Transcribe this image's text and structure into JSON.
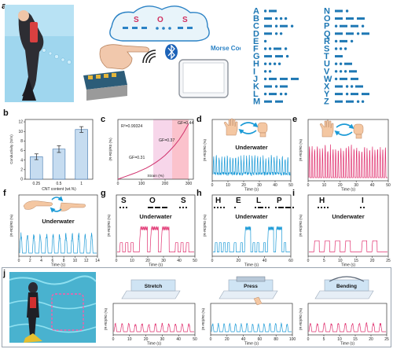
{
  "colors": {
    "blue": "#1e9bd7",
    "pink": "#e0306f",
    "morse": "#1e78b4",
    "bar": "#c6dcf0"
  },
  "panel_labels": [
    "a",
    "b",
    "c",
    "d",
    "e",
    "f",
    "g",
    "h",
    "i",
    "j"
  ],
  "panel_a": {
    "sos": [
      "S",
      "O",
      "S"
    ],
    "morse_label": "Morse Code",
    "bluetooth_icon": "bluetooth-icon",
    "wifi_icon": "wifi-signal-icon",
    "alphabet": [
      {
        "letter": "A",
        "code": ".-"
      },
      {
        "letter": "B",
        "code": "-..."
      },
      {
        "letter": "C",
        "code": "-.-."
      },
      {
        "letter": "D",
        "code": "-.."
      },
      {
        "letter": "E",
        "code": "."
      },
      {
        "letter": "F",
        "code": "..-."
      },
      {
        "letter": "G",
        "code": "--."
      },
      {
        "letter": "H",
        "code": "...."
      },
      {
        "letter": "I",
        "code": ".."
      },
      {
        "letter": "J",
        "code": ".---"
      },
      {
        "letter": "K",
        "code": "-.-"
      },
      {
        "letter": "L",
        "code": ".-.."
      },
      {
        "letter": "M",
        "code": "--"
      },
      {
        "letter": "N",
        "code": "-."
      },
      {
        "letter": "O",
        "code": "---"
      },
      {
        "letter": "P",
        "code": ".--."
      },
      {
        "letter": "Q",
        "code": "--.-"
      },
      {
        "letter": "R",
        "code": ".-."
      },
      {
        "letter": "S",
        "code": "..."
      },
      {
        "letter": "T",
        "code": "-"
      },
      {
        "letter": "U",
        "code": "..-"
      },
      {
        "letter": "V",
        "code": "...-"
      },
      {
        "letter": "W",
        "code": ".--"
      },
      {
        "letter": "X",
        "code": "-..-"
      },
      {
        "letter": "Y",
        "code": "-.--"
      },
      {
        "letter": "Z",
        "code": "--.."
      }
    ]
  },
  "chart_data": [
    {
      "id": "b",
      "type": "bar",
      "categories": [
        "0.25",
        "0.5",
        "1"
      ],
      "values": [
        4.7,
        6.3,
        10.4
      ],
      "errors": [
        0.6,
        0.7,
        0.6
      ],
      "xlabel": "CNT content (wt.%)",
      "ylabel": "Conductivity (S/m)",
      "yticks": [
        0,
        2,
        4,
        6,
        8,
        10,
        12
      ],
      "ylim": [
        0,
        12.5
      ]
    },
    {
      "id": "c",
      "type": "line",
      "x": [
        0,
        20,
        40,
        60,
        80,
        100,
        120,
        140,
        160,
        180,
        200,
        220,
        240,
        260,
        280,
        300
      ],
      "y": [
        0,
        4,
        8,
        12,
        16,
        21,
        26,
        32,
        39,
        47,
        56,
        67,
        79,
        93,
        110,
        130
      ],
      "xlabel": "Strain (%)",
      "ylabel": "(R-R0)/R0 (%)",
      "xticks": [
        0,
        100,
        200,
        300
      ],
      "xlim": [
        0,
        320
      ],
      "ylim": [
        0,
        140
      ],
      "regions": [
        [
          150,
          230
        ],
        [
          230,
          300
        ]
      ],
      "annotations": [
        "R²=0.99324",
        "GF=0.31",
        "GF=0.37",
        "GF=0.44"
      ]
    },
    {
      "id": "d",
      "type": "line",
      "ylabel": "(R-R0)/R0 (%)",
      "xlabel": "Time (s)",
      "xticks": [
        0,
        10,
        20,
        30,
        40,
        50
      ],
      "label": "Underwater",
      "color": "blue",
      "pulses": 28,
      "pulse_height": 0.8,
      "noise_level": 0.45
    },
    {
      "id": "e",
      "type": "line",
      "ylabel": "(R-R0)/R0 (%)",
      "xlabel": "Time (s)",
      "xticks": [
        0,
        10,
        20,
        30,
        40,
        50
      ],
      "color": "pink",
      "pulses": 30,
      "pulse_height": 0.85
    },
    {
      "id": "f",
      "type": "line",
      "ylabel": "(R-R0)/R0 (%)",
      "xlabel": "Time (s)",
      "xticks": [
        0,
        2,
        4,
        6,
        8,
        10,
        12,
        14
      ],
      "label": "Underwater",
      "color": "blue",
      "pulses": 12,
      "pulse_height": 0.8
    },
    {
      "id": "g",
      "type": "line",
      "ylabel": "(R-R0)/R0 (%)",
      "xlabel": "Time (s)",
      "xticks": [
        0,
        10,
        20,
        30,
        40,
        50
      ],
      "label": "Underwater",
      "letters": [
        "S",
        "O",
        "S"
      ],
      "morse": "... --- ...",
      "color": "pink"
    },
    {
      "id": "h",
      "type": "line",
      "ylabel": "(R-R0)/R0 (%)",
      "xlabel": "Time (s)",
      "xticks": [
        0,
        20,
        40,
        60
      ],
      "label": "Underwater",
      "letters": [
        "H",
        "E",
        "L",
        "P"
      ],
      "morse": ".... . .-.. .--.",
      "color": "blue"
    },
    {
      "id": "i",
      "type": "line",
      "ylabel": "(R-R0)/R0 (%)",
      "xlabel": "Time (s)",
      "xticks": [
        0,
        5,
        10,
        15,
        20,
        25
      ],
      "label": "Underwater",
      "letters": [
        "H",
        "I"
      ],
      "morse": ".... ..",
      "color": "pink"
    },
    {
      "id": "j1",
      "type": "line",
      "ylabel": "(R-R0)/R0 (%)",
      "xlabel": "Time (s)",
      "xticks": [
        0,
        10,
        20,
        30,
        40,
        50
      ],
      "label": "Stretch",
      "color": "pink",
      "pulses": 12
    },
    {
      "id": "j2",
      "type": "line",
      "ylabel": "(R-R0)/R0 (%)",
      "xlabel": "Time (s)",
      "xticks": [
        0,
        20,
        40,
        60,
        80,
        100
      ],
      "label": "Press",
      "color": "blue",
      "pulses": 14
    },
    {
      "id": "j3",
      "type": "line",
      "ylabel": "(R-R0)/R0 (%)",
      "xlabel": "Time (s)",
      "xticks": [
        0,
        5,
        10,
        15,
        20,
        25
      ],
      "label": "Bending",
      "color": "pink",
      "pulses": 11
    }
  ]
}
